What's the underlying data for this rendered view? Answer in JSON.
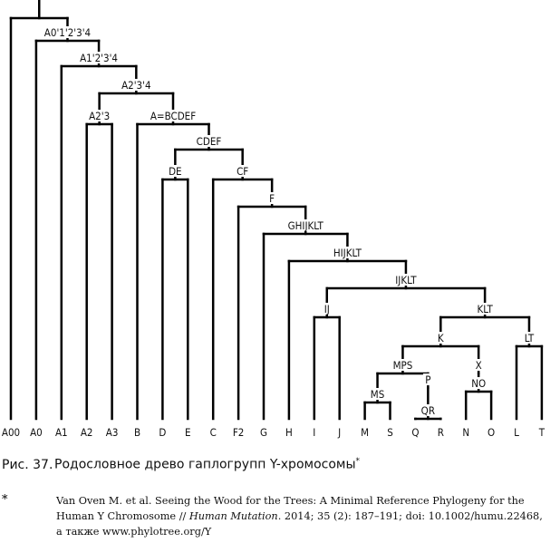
{
  "tree": {
    "root": {
      "label": "",
      "children": [
        {
          "label": "A00"
        },
        {
          "label": "A0'1'2'3'4",
          "children": [
            {
              "label": "A0"
            },
            {
              "label": "A1'2'3'4",
              "children": [
                {
                  "label": "A1"
                },
                {
                  "label": "A2'3'4",
                  "children": [
                    {
                      "label": "A2'3",
                      "children": [
                        {
                          "label": "A2"
                        },
                        {
                          "label": "A3"
                        }
                      ]
                    },
                    {
                      "label": "A=BCDEF",
                      "children": [
                        {
                          "label": "B"
                        },
                        {
                          "label": "CDEF",
                          "children": [
                            {
                              "label": "DE",
                              "children": [
                                {
                                  "label": "D"
                                },
                                {
                                  "label": "E"
                                }
                              ]
                            },
                            {
                              "label": "CF",
                              "children": [
                                {
                                  "label": "C"
                                },
                                {
                                  "label": "F",
                                  "children": [
                                    {
                                      "label": "F2"
                                    },
                                    {
                                      "label": "GHIJKLT",
                                      "children": [
                                        {
                                          "label": "G"
                                        },
                                        {
                                          "label": "HIJKLT",
                                          "children": [
                                            {
                                              "label": "H"
                                            },
                                            {
                                              "label": "IJKLT",
                                              "children": [
                                                {
                                                  "label": "IJ",
                                                  "children": [
                                                    {
                                                      "label": "I"
                                                    },
                                                    {
                                                      "label": "J"
                                                    }
                                                  ]
                                                },
                                                {
                                                  "label": "KLT",
                                                  "children": [
                                                    {
                                                      "label": "K",
                                                      "children": [
                                                        {
                                                          "label": "MPS",
                                                          "children": [
                                                            {
                                                              "label": "MS",
                                                              "children": [
                                                                {
                                                                  "label": "M"
                                                                },
                                                                {
                                                                  "label": "S"
                                                                }
                                                              ]
                                                            },
                                                            {
                                                              "label": "P",
                                                              "children": [
                                                                {
                                                                  "label": "QR",
                                                                  "children": [
                                                                    {
                                                                      "label": "Q"
                                                                    },
                                                                    {
                                                                      "label": "R"
                                                                    }
                                                                  ]
                                                                }
                                                              ]
                                                            }
                                                          ]
                                                        },
                                                        {
                                                          "label": "X",
                                                          "children": [
                                                            {
                                                              "label": "NO",
                                                              "children": [
                                                                {
                                                                  "label": "N"
                                                                },
                                                                {
                                                                  "label": "O"
                                                                }
                                                              ]
                                                            }
                                                          ]
                                                        }
                                                      ]
                                                    },
                                                    {
                                                      "label": "LT",
                                                      "children": [
                                                        {
                                                          "label": "L"
                                                        },
                                                        {
                                                          "label": "T"
                                                        }
                                                      ]
                                                    }
                                                  ]
                                                }
                                              ]
                                            }
                                          ]
                                        }
                                      ]
                                    }
                                  ]
                                }
                              ]
                            }
                          ]
                        }
                      ]
                    }
                  ]
                }
              ]
            }
          ]
        }
      ]
    }
  },
  "caption": {
    "number": "Рис. 37.",
    "text": "Родословное древо гаплогрупп Y-хромосомы",
    "footnote_mark": "*"
  },
  "footnote": {
    "mark": "*",
    "line1": "Van Oven M. et al. Seeing the Wood for the Trees: A Minimal Reference Phylogeny for the",
    "line2_start": "Human Y Chromosome // ",
    "journal": "Human Mutation",
    "line2_end": ". 2014; 35 (2): 187–191; doi: 10.1002/humu.22468,",
    "line3": "а также www.phylotree.org/Y"
  }
}
